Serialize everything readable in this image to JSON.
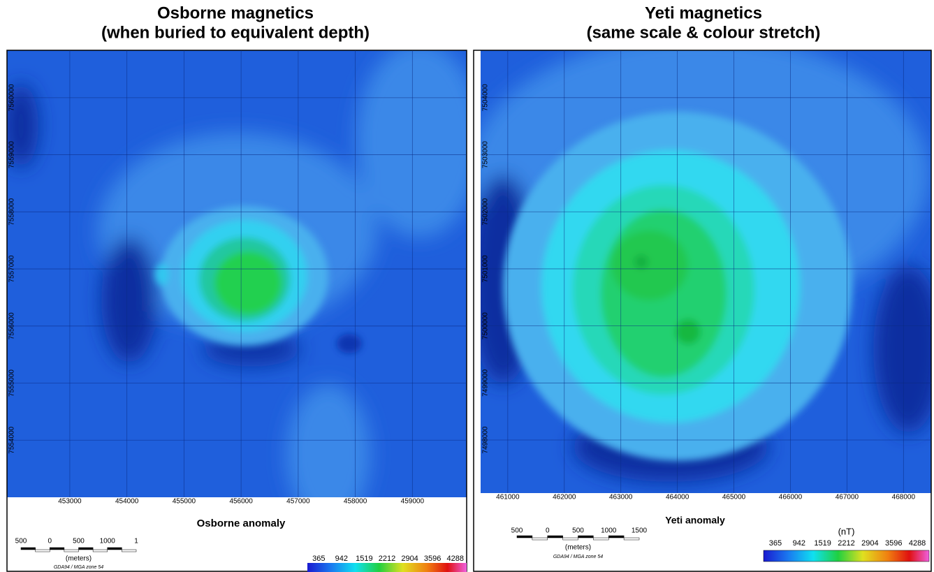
{
  "panels": [
    {
      "title": [
        "Osborne magnetics",
        "(when buried to equivalent depth)"
      ],
      "map": {
        "xlim": [
          451900,
          459950
        ],
        "ylim": [
          7553000,
          7560830
        ],
        "xticks": [
          453000,
          454000,
          455000,
          456000,
          457000,
          458000,
          459000
        ],
        "yticks": [
          7554000,
          7555000,
          7556000,
          7557000,
          7558000,
          7559000,
          7560000
        ]
      },
      "anomaly_label": "Osborne anomaly",
      "scale_bar": {
        "labels": [
          "500",
          "0",
          "500",
          "1000",
          "1"
        ],
        "unit": "(meters)",
        "datum": "GDA94 / MGA zone 54"
      },
      "colorbar": {
        "labels": [
          365,
          942,
          1519,
          2212,
          2904,
          3596,
          4288
        ]
      }
    },
    {
      "title": [
        "Yeti magnetics",
        "(same scale & colour stretch)"
      ],
      "map": {
        "xlim": [
          460520,
          468490
        ],
        "ylim": [
          7497070,
          7504830
        ],
        "xticks": [
          461000,
          462000,
          463000,
          464000,
          465000,
          466000,
          467000,
          468000
        ],
        "yticks": [
          7498000,
          7499000,
          7500000,
          7501000,
          7502000,
          7503000,
          7504000
        ]
      },
      "anomaly_label": "Yeti anomaly",
      "scale_bar": {
        "labels": [
          "500",
          "0",
          "500",
          "1000",
          "1500"
        ],
        "unit": "(meters)",
        "datum": "GDA94 / MGA zone 54"
      },
      "colorbar": {
        "unit": "(nT)",
        "labels": [
          365,
          942,
          1519,
          2212,
          2904,
          3596,
          4288
        ]
      }
    }
  ]
}
